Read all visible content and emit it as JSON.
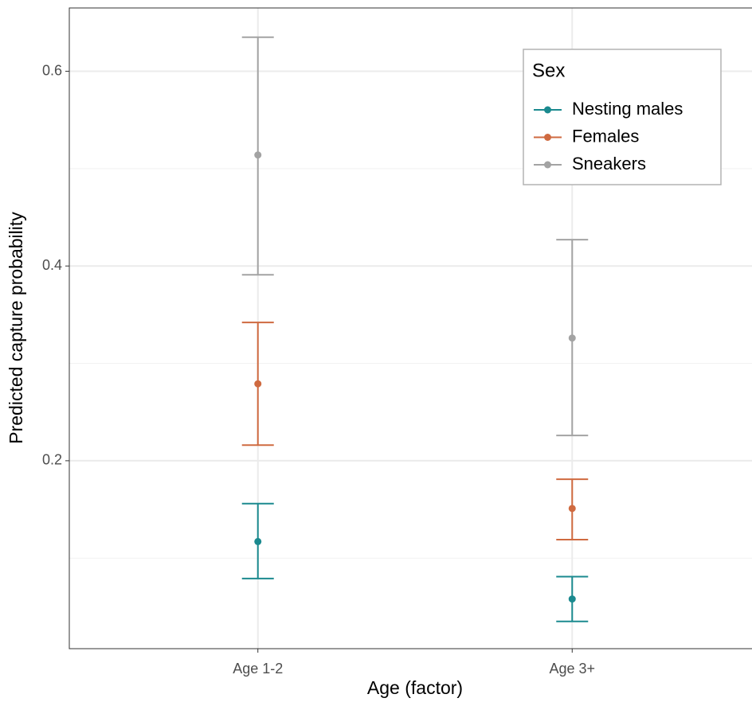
{
  "chart_data": {
    "type": "errorbar",
    "x_label": "Age (factor)",
    "y_label": "Predicted capture probability",
    "categories": [
      "Age 1-2",
      "Age 3+"
    ],
    "series": [
      {
        "name": "Nesting males",
        "color": "#1b8a8f",
        "values": [
          0.117,
          0.058
        ],
        "lower": [
          0.079,
          0.035
        ],
        "upper": [
          0.156,
          0.081
        ]
      },
      {
        "name": "Females",
        "color": "#cf6a40",
        "values": [
          0.279,
          0.151
        ],
        "lower": [
          0.216,
          0.119
        ],
        "upper": [
          0.342,
          0.181
        ]
      },
      {
        "name": "Sneakers",
        "color": "#a3a3a3",
        "values": [
          0.514,
          0.326
        ],
        "lower": [
          0.391,
          0.226
        ],
        "upper": [
          0.635,
          0.427
        ]
      }
    ],
    "legend_title": "Sex",
    "legend_position": "top-right",
    "ylim": [
      0.007,
      0.665
    ],
    "yticks": [
      0.2,
      0.4,
      0.6
    ],
    "grid": true
  }
}
